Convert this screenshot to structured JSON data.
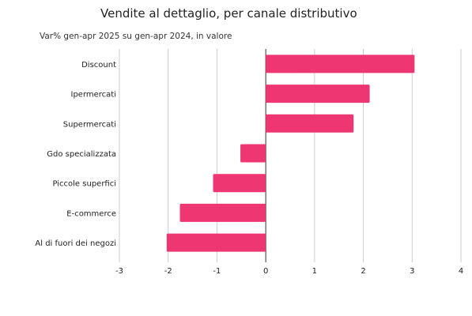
{
  "title": "Vendite al dettaglio, per canale distributivo",
  "subtitle": "Var% gen-apr 2025 su gen-apr 2024, in valore",
  "chart_data": {
    "type": "bar",
    "orientation": "horizontal",
    "categories": [
      "Discount",
      "Ipermercati",
      "Supermercati",
      "Gdo specializzata",
      "Piccole superfici",
      "E-commerce",
      "Al di fuori dei negozi"
    ],
    "values": [
      3.05,
      2.13,
      1.8,
      -0.52,
      -1.08,
      -1.76,
      -2.03
    ],
    "xlim": [
      -3,
      4
    ],
    "xticks": [
      "-3",
      "-2",
      "-1",
      "0",
      "1",
      "2",
      "3",
      "4"
    ],
    "grid": "vertical",
    "bar_color": "#ee3672",
    "legend": "none"
  }
}
